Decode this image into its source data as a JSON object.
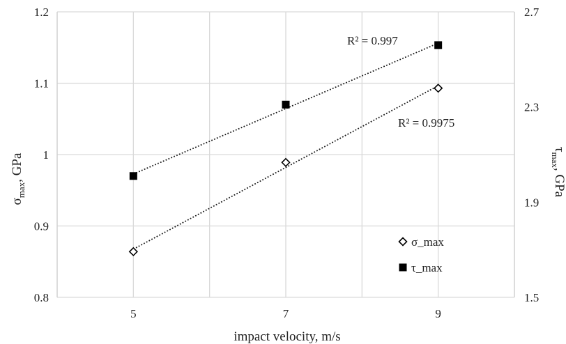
{
  "chart_data": {
    "type": "scatter",
    "xlabel": "impact velocity, m/s",
    "ylabel_left_main": "σ",
    "ylabel_left_sub": "max",
    "ylabel_left_unit": ", GPa",
    "ylabel_right_main": "τ",
    "ylabel_right_sub": "max",
    "ylabel_right_unit": ", GPa",
    "xlim": [
      4,
      10
    ],
    "ylim_left": [
      0.8,
      1.2
    ],
    "ylim_right": [
      1.5,
      2.7
    ],
    "x_ticks": [
      5,
      7,
      9
    ],
    "x_tick_labels": [
      "5",
      "7",
      "9"
    ],
    "y_left_ticks": [
      0.8,
      0.9,
      1.0,
      1.1,
      1.2
    ],
    "y_left_tick_labels": [
      "0.8",
      "0.9",
      "1",
      "1.1",
      "1.2"
    ],
    "y_right_ticks": [
      1.5,
      1.9,
      2.3,
      2.7
    ],
    "y_right_tick_labels": [
      "1.5",
      "1.9",
      "2.3",
      "2.7"
    ],
    "grid": true,
    "legend_position": "bottom-right",
    "series": [
      {
        "name": "σ_max",
        "axis": "left",
        "marker": "diamond-open",
        "color": "#000000",
        "x": [
          5,
          7,
          9
        ],
        "y": [
          0.864,
          0.989,
          1.093
        ],
        "trendline": "linear",
        "r2_label": "R² = 0.9975"
      },
      {
        "name": "τ_max",
        "axis": "right",
        "marker": "square-filled",
        "color": "#000000",
        "x": [
          5,
          7,
          9
        ],
        "y": [
          2.01,
          2.31,
          2.56
        ],
        "trendline": "linear",
        "r2_label": "R² = 0.997"
      }
    ]
  }
}
